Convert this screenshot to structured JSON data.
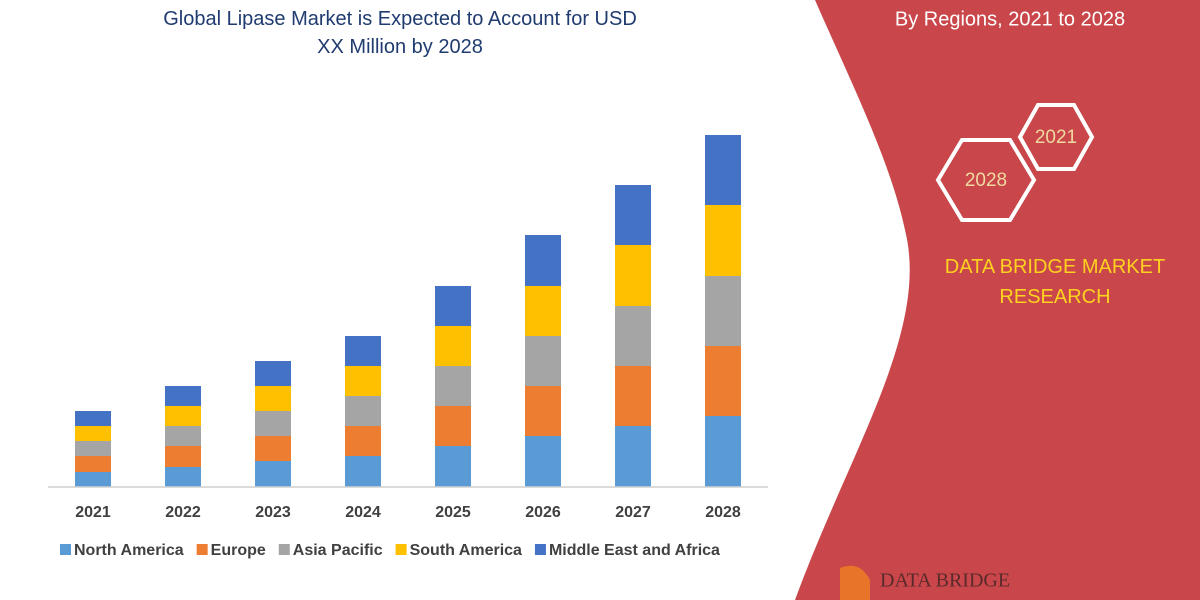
{
  "chart_data": {
    "type": "stacked-bar",
    "title": "Global Lipase Market is Expected to Account for USD XX Million by 2028",
    "categories": [
      "2021",
      "2022",
      "2023",
      "2024",
      "2025",
      "2026",
      "2027",
      "2028"
    ],
    "series": [
      {
        "name": "North America",
        "color": "#5b9bd5",
        "values": [
          15,
          20,
          26,
          31,
          41,
          51,
          61,
          71
        ]
      },
      {
        "name": "Europe",
        "color": "#ed7d31",
        "values": [
          16,
          21,
          25,
          30,
          40,
          50,
          60,
          70
        ]
      },
      {
        "name": "Asia Pacific",
        "color": "#a5a5a5",
        "values": [
          15,
          20,
          25,
          30,
          40,
          50,
          60,
          70
        ]
      },
      {
        "name": "South America",
        "color": "#ffc000",
        "values": [
          15,
          20,
          25,
          30,
          40,
          50,
          61,
          71
        ]
      },
      {
        "name": "Middle East and Africa",
        "color": "#4472c4",
        "values": [
          15,
          20,
          25,
          30,
          40,
          51,
          60,
          70
        ]
      }
    ],
    "ylim": [
      0,
      360
    ],
    "legend": "bottom"
  },
  "side_panel": {
    "subtitle": "By Regions, 2021 to 2028",
    "hexagons": [
      "2021",
      "2028"
    ],
    "brand": "DATA BRIDGE MARKET RESEARCH",
    "logo": "DATA BRIDGE"
  }
}
